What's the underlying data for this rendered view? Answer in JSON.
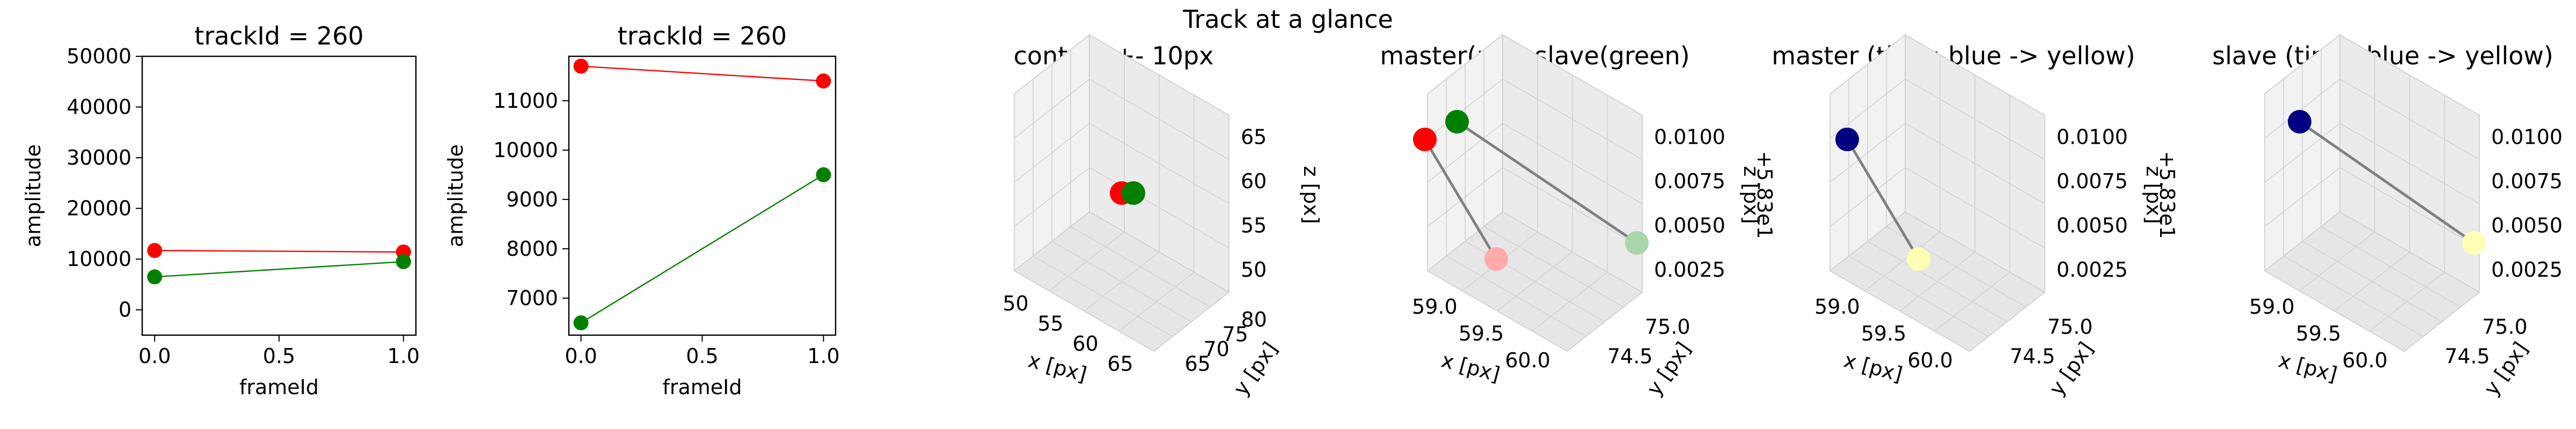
{
  "suptitle": "Track at a glance",
  "chart_data": [
    {
      "type": "line",
      "title": "trackId = 260",
      "xlabel": "frameId",
      "ylabel": "amplitude",
      "xlim": [
        -0.05,
        1.05
      ],
      "ylim": [
        -5000,
        50000
      ],
      "xticks": [
        "0.0",
        "0.5",
        "1.0"
      ],
      "yticks": [
        "0",
        "10000",
        "20000",
        "30000",
        "40000",
        "50000"
      ],
      "series": [
        {
          "color": "#ff0000",
          "x": [
            0,
            1
          ],
          "y": [
            11700,
            11400
          ]
        },
        {
          "color": "#008000",
          "x": [
            0,
            1
          ],
          "y": [
            6500,
            9500
          ]
        }
      ]
    },
    {
      "type": "line",
      "title": "trackId = 260",
      "xlabel": "frameId",
      "ylabel": "amplitude",
      "xlim": [
        -0.05,
        1.05
      ],
      "ylim": [
        6250,
        11900
      ],
      "xticks": [
        "0.0",
        "0.5",
        "1.0"
      ],
      "yticks": [
        "7000",
        "8000",
        "9000",
        "10000",
        "11000"
      ],
      "series": [
        {
          "color": "#ff0000",
          "x": [
            0,
            1
          ],
          "y": [
            11700,
            11400
          ]
        },
        {
          "color": "#008000",
          "x": [
            0,
            1
          ],
          "y": [
            6500,
            9500
          ]
        }
      ]
    },
    {
      "type": "scatter",
      "title": "context +- 10px",
      "xlabel": "x [px]",
      "ylabel": "y [px]",
      "zlabel": "z [px]",
      "xticks": [
        "50",
        "55",
        "60",
        "65"
      ],
      "yticks": [
        "65",
        "70",
        "75",
        "80"
      ],
      "zticks": [
        "50",
        "55",
        "60",
        "65"
      ],
      "points": [
        {
          "color": "#ff0000"
        },
        {
          "color": "#008000"
        }
      ]
    },
    {
      "type": "scatter",
      "title": "master(red) slave(green)",
      "xlabel": "x [px]",
      "ylabel": "y [px]",
      "zlabel": "z [px]",
      "xticks": [
        "59.0",
        "59.5",
        "60.0"
      ],
      "yticks": [
        "74.5",
        "75.0"
      ],
      "zticks": [
        "0.0025",
        "0.0050",
        "0.0075",
        "0.0100"
      ],
      "offset_text": "+5.83e1",
      "points": [
        {
          "color": "#ff0000"
        },
        {
          "color": "#008000"
        },
        {
          "color": "#ffaaaa"
        },
        {
          "color": "#aad4aa"
        }
      ]
    },
    {
      "type": "scatter",
      "title": "master (time: blue -> yellow)",
      "xlabel": "x [px]",
      "ylabel": "y [px]",
      "zlabel": "z [px]",
      "xticks": [
        "59.0",
        "59.5",
        "60.0"
      ],
      "yticks": [
        "74.5",
        "75.0"
      ],
      "zticks": [
        "0.0025",
        "0.0050",
        "0.0075",
        "0.0100"
      ],
      "offset_text": "+5.83e1",
      "points": [
        {
          "color": "#000080"
        },
        {
          "color": "#ffffb3"
        }
      ]
    },
    {
      "type": "scatter",
      "title": "slave (time: blue -> yellow)",
      "xlabel": "x [px]",
      "ylabel": "y [px]",
      "zlabel": "z [px]",
      "xticks": [
        "59.0",
        "59.5",
        "60.0"
      ],
      "yticks": [
        "74.5",
        "75.0"
      ],
      "zticks": [
        "0.0025",
        "0.0050",
        "0.0075",
        "0.0100"
      ],
      "offset_text": "+5.83e1",
      "points": [
        {
          "color": "#000080"
        },
        {
          "color": "#ffffb3"
        }
      ]
    }
  ]
}
